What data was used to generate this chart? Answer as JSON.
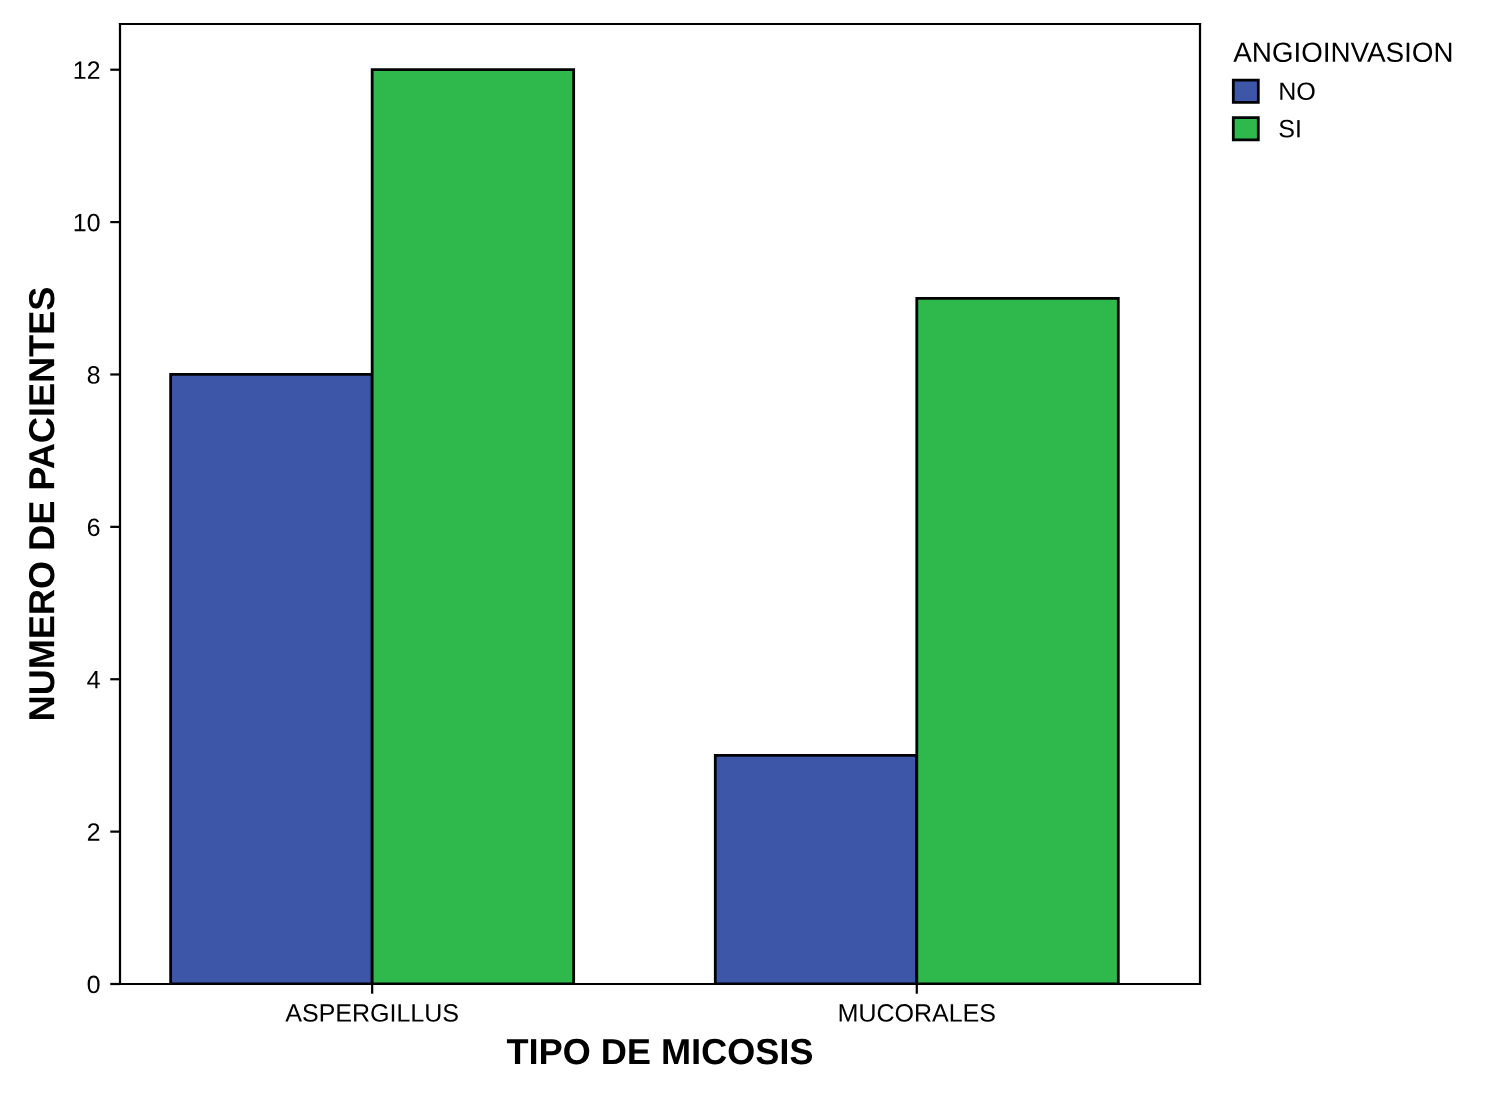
{
  "chart_data": {
    "type": "bar",
    "xlabel": "TIPO DE MICOSIS",
    "ylabel": "NUMERO DE PACIENTES",
    "legend_title": "ANGIOINVASION",
    "categories": [
      "ASPERGILLUS",
      "MUCORALES"
    ],
    "series": [
      {
        "name": "NO",
        "color": "#3d56a8",
        "values": [
          8,
          3
        ]
      },
      {
        "name": "SI",
        "color": "#2fb84b",
        "values": [
          12,
          9
        ]
      }
    ],
    "ylim": [
      0,
      12.6
    ],
    "yticks": [
      0,
      2,
      4,
      6,
      8,
      10,
      12
    ],
    "grid": false,
    "legend": "top right"
  }
}
